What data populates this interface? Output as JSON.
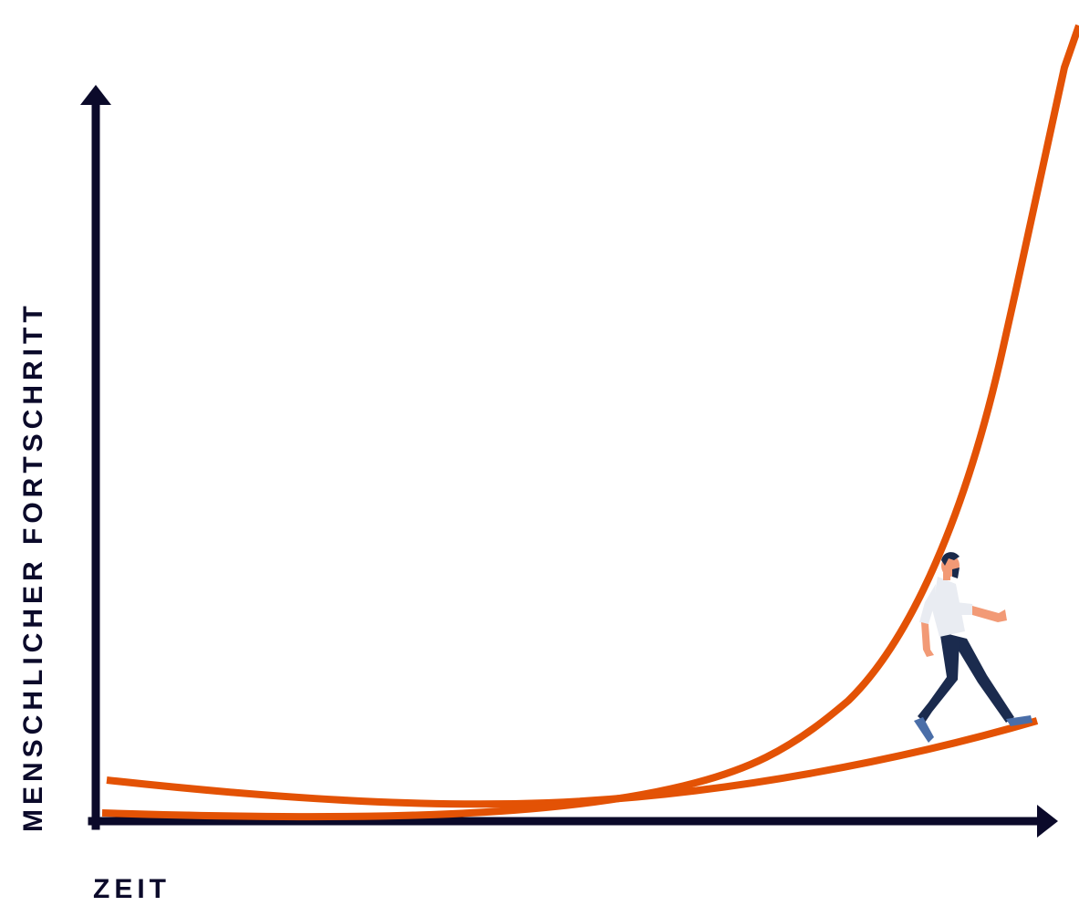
{
  "diagram": {
    "y_axis_label": "MENSCHLICHER FORTSCHRITT",
    "x_axis_label": "ZEIT",
    "curves": [
      {
        "id": "exponential",
        "shape": "exponential growth"
      },
      {
        "id": "linear-expectation",
        "shape": "gradual rise"
      }
    ],
    "figure": {
      "icon": "walking-man-icon"
    }
  },
  "colors": {
    "axis": "#0b0a2a",
    "curve": "#e35205",
    "shirt": "#e9ecf2",
    "pants": "#1b2b4e",
    "skin": "#f29a76",
    "hair": "#1a2a4a",
    "shoes": "#4a6ea8"
  }
}
